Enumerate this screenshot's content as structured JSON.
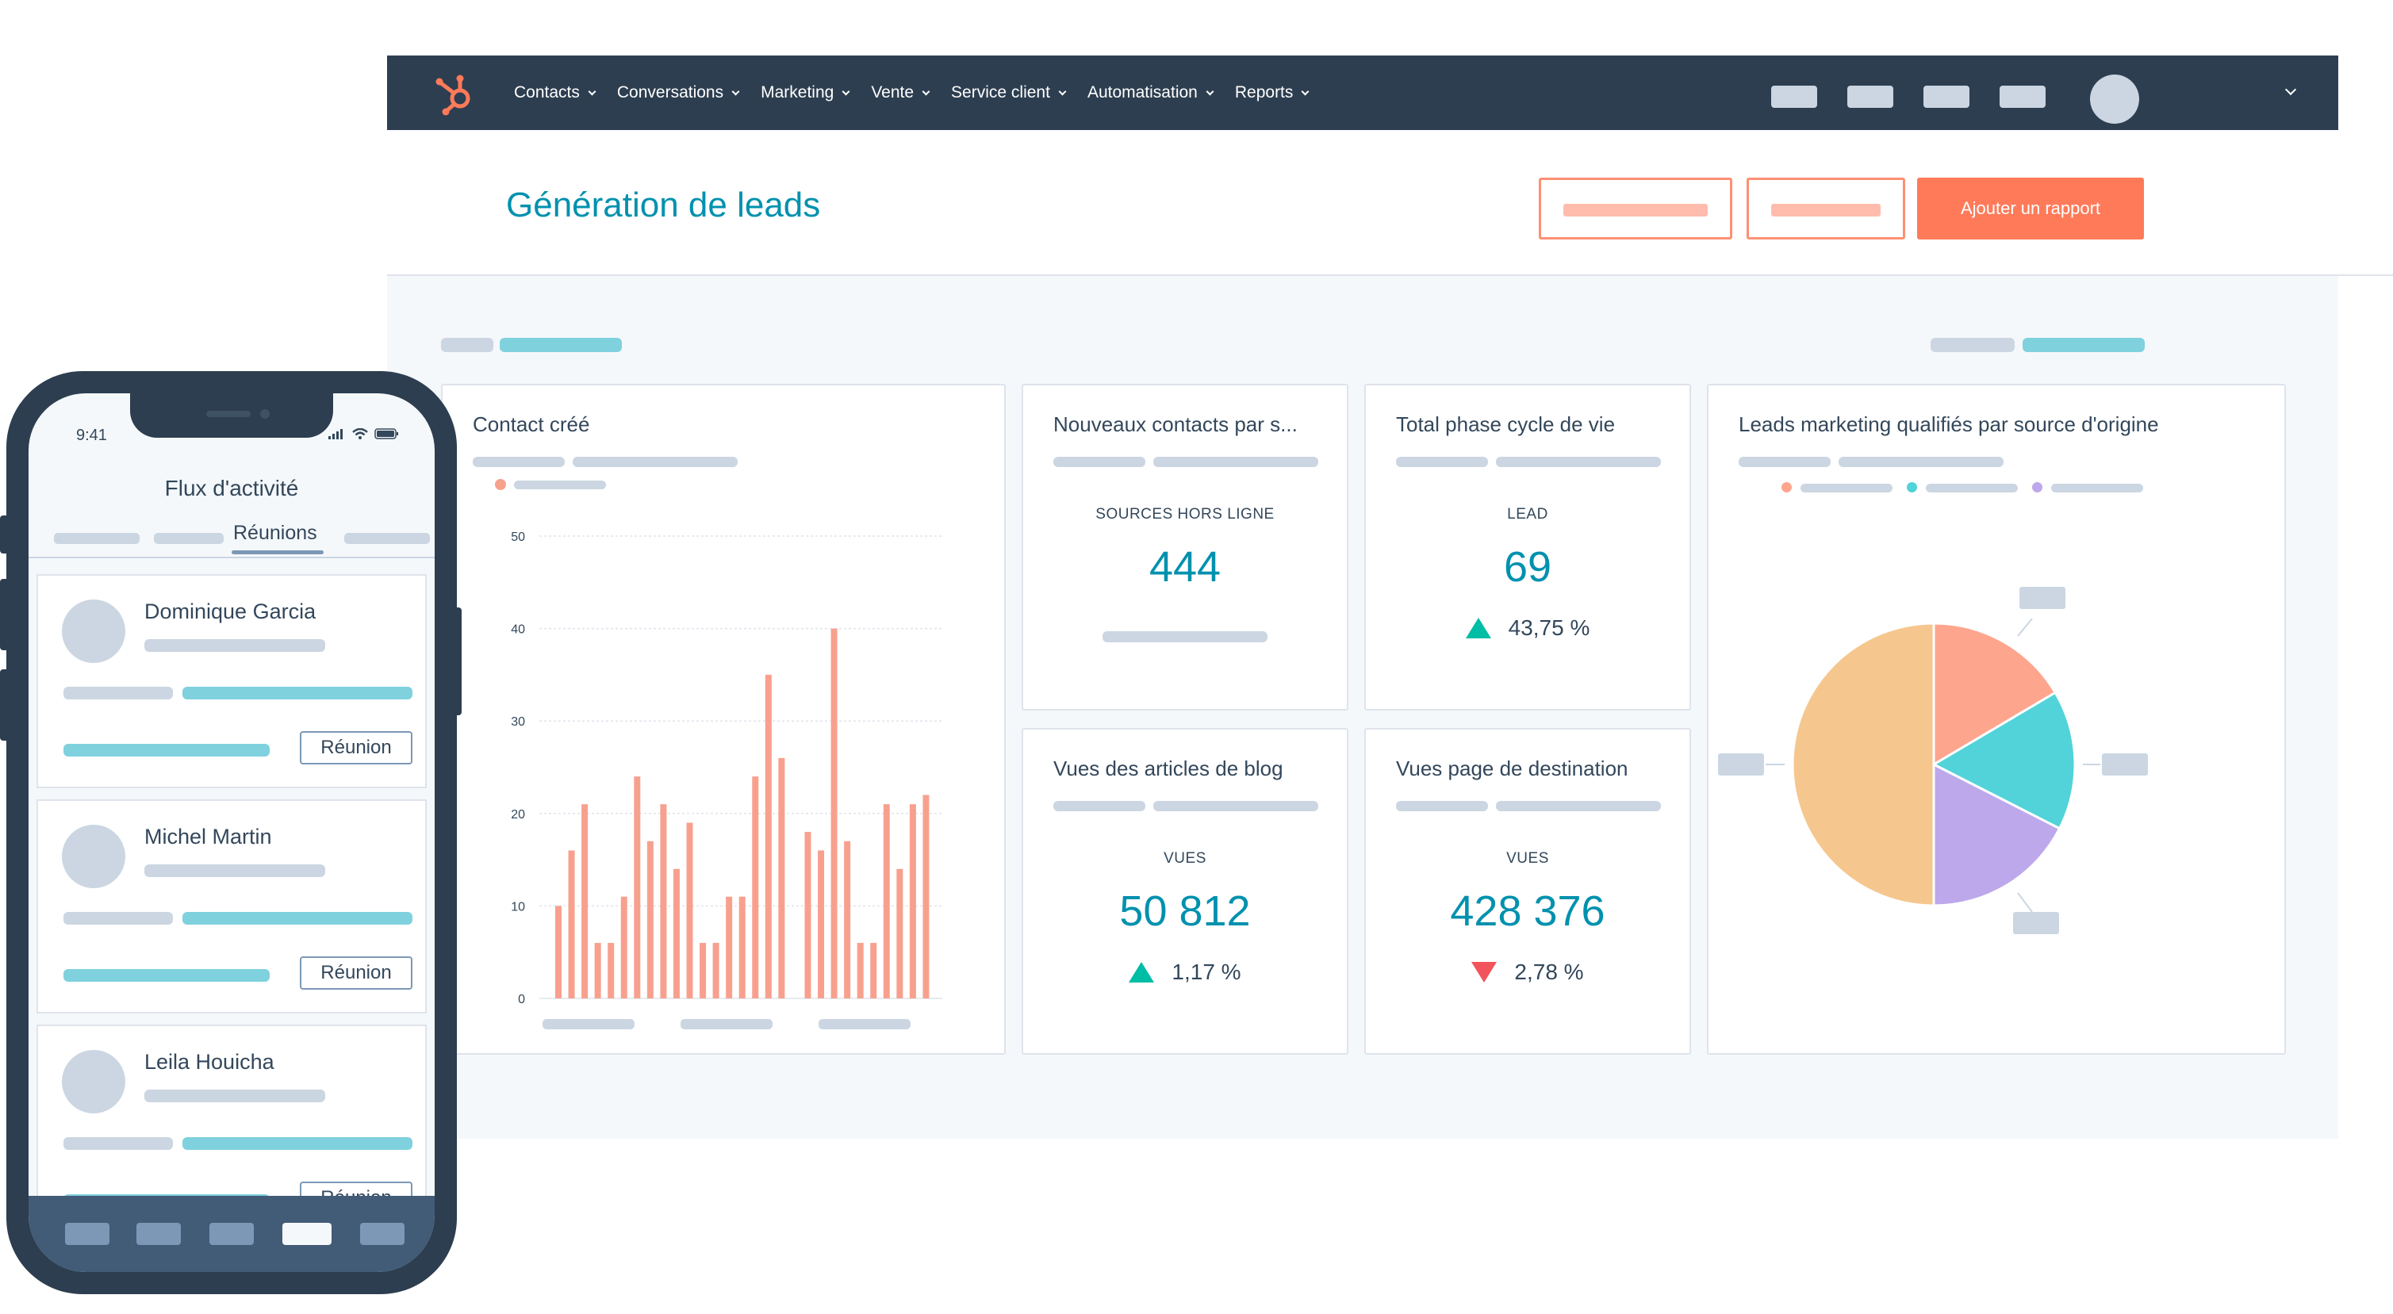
{
  "nav": {
    "items": [
      {
        "label": "Contacts"
      },
      {
        "label": "Conversations"
      },
      {
        "label": "Marketing"
      },
      {
        "label": "Vente"
      },
      {
        "label": "Service client"
      },
      {
        "label": "Automatisation"
      },
      {
        "label": "Reports"
      }
    ]
  },
  "header": {
    "title": "Génération de leads",
    "add_report_label": "Ajouter un rapport"
  },
  "cards": {
    "contact_created": {
      "title": "Contact créé"
    },
    "new_contacts": {
      "title": "Nouveaux contacts par s...",
      "label": "SOURCES HORS LIGNE",
      "value": "444"
    },
    "lifecycle": {
      "title": "Total phase cycle de vie",
      "label": "LEAD",
      "value": "69",
      "change": "43,75 %",
      "trend": "up"
    },
    "mql": {
      "title": "Leads marketing qualifiés par source d'origine"
    },
    "blog_views": {
      "title": "Vues des articles de blog",
      "label": "VUES",
      "value": "50 812",
      "change": "1,17 %",
      "trend": "up"
    },
    "landing_views": {
      "title": "Vues page de destination",
      "label": "VUES",
      "value": "428 376",
      "change": "2,78 %",
      "trend": "down"
    }
  },
  "chart_data": [
    {
      "type": "bar",
      "title": "Contact créé",
      "ylim": [
        0,
        50
      ],
      "yticks": [
        "0",
        "10",
        "20",
        "30",
        "40",
        "50"
      ],
      "color": "#f8a08e",
      "values": [
        10,
        16,
        21,
        6,
        6,
        11,
        24,
        17,
        21,
        14,
        19,
        6,
        6,
        11,
        11,
        24,
        35,
        26,
        null,
        18,
        16,
        40,
        17,
        6,
        6,
        21,
        14,
        21,
        22
      ]
    },
    {
      "type": "pie",
      "title": "Leads marketing qualifiés par source d'origine",
      "colors": [
        "#fea58e",
        "#51d3d9",
        "#bda8eb",
        "#f5c78e"
      ],
      "values": [
        16.5,
        16,
        17.5,
        50
      ]
    }
  ],
  "colors": {
    "navbar": "#2d3e50",
    "accent_teal": "#0091ae",
    "accent_orange": "#ff7a59",
    "up": "#00bda5",
    "down": "#f2545b"
  },
  "phone": {
    "time": "9:41",
    "app_title": "Flux d'activité",
    "active_tab": "Réunions",
    "meetings": [
      {
        "name": "Dominique Garcia",
        "button": "Réunion"
      },
      {
        "name": "Michel Martin",
        "button": "Réunion"
      },
      {
        "name": "Leila Houicha",
        "button": "Réunion"
      }
    ]
  }
}
